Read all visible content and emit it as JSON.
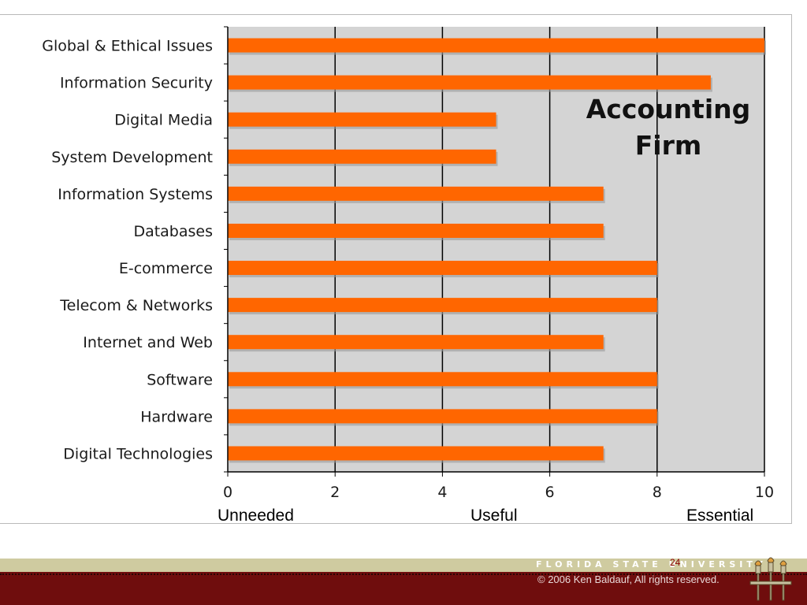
{
  "chart_data": {
    "type": "bar",
    "orientation": "horizontal",
    "title_lines": [
      "Accounting",
      "Firm"
    ],
    "categories": [
      "Global & Ethical Issues",
      "Information Security",
      "Digital Media",
      "System Development",
      "Information Systems",
      "Databases",
      "E-commerce",
      "Telecom & Networks",
      "Internet and Web",
      "Software",
      "Hardware",
      "Digital Technologies"
    ],
    "values": [
      10,
      9,
      5,
      5,
      7,
      7,
      8,
      8,
      7,
      8,
      8,
      7
    ],
    "xlim": [
      0,
      10
    ],
    "xticks": [
      "0",
      "2",
      "4",
      "6",
      "8",
      "10"
    ],
    "grid": "vertical",
    "scale_labels": [
      "Unneeded",
      "Useful",
      "Essential"
    ],
    "colors": {
      "bar": "#ff6600",
      "plot_background": "#d4d4d4",
      "grid": "#000000"
    }
  },
  "footer": {
    "university": "FLORIDA STATE UNIVERSITY",
    "page_number": "24",
    "copyright": "© 2006 Ken Baldauf, All rights reserved.",
    "colors": {
      "band": "#cfcba0",
      "maroon": "#6f0d0d"
    }
  }
}
